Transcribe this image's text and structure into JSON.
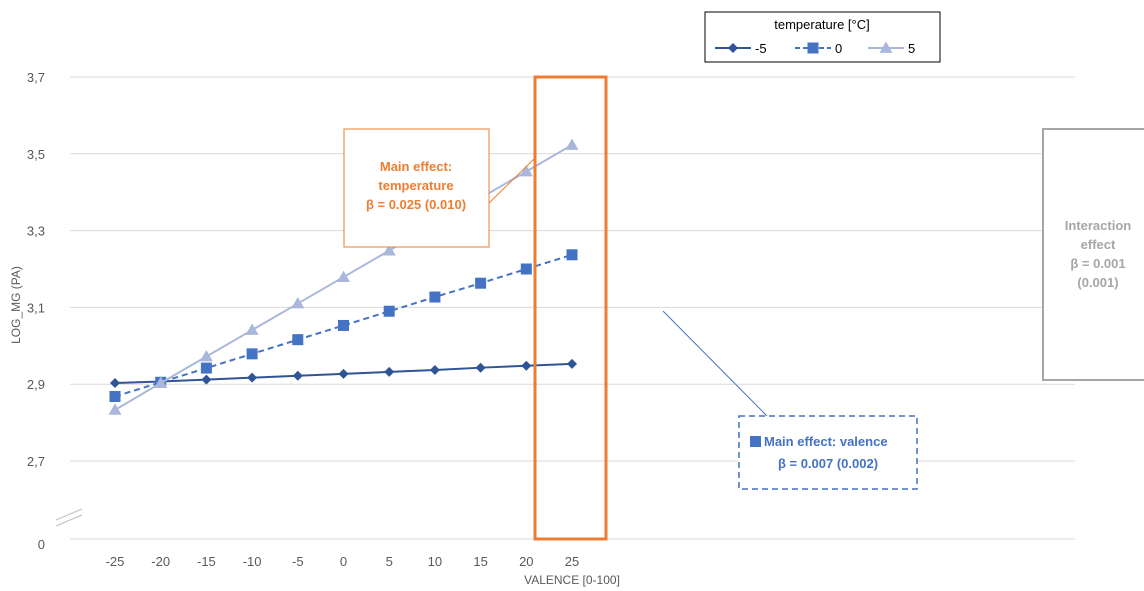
{
  "chart_data": {
    "type": "line",
    "xlabel": "VALENCE [0-100]",
    "ylabel": "LOG_MG (PA)",
    "x": [
      -25,
      -20,
      -15,
      -10,
      -5,
      0,
      5,
      10,
      15,
      20,
      25
    ],
    "x_tick_labels": [
      "-25",
      "-20",
      "-15",
      "-10",
      "-5",
      "0",
      "5",
      "10",
      "15",
      "20",
      "25"
    ],
    "y_tick_labels": [
      "0",
      "2,7",
      "2,9",
      "3,1",
      "3,3",
      "3,5",
      "3,7"
    ],
    "y_ticks": [
      2.7,
      2.9,
      3.1,
      3.3,
      3.5,
      3.7
    ],
    "ylim": [
      2.5,
      3.7
    ],
    "y_axis_break": true,
    "grid": "horizontal",
    "legend": {
      "title": "temperature [°C]",
      "placement": "top-right"
    },
    "series": [
      {
        "name": "-5",
        "color": "#2F5597",
        "marker": "diamond",
        "dash": "solid",
        "values": [
          2.903,
          2.907,
          2.912,
          2.917,
          2.922,
          2.927,
          2.932,
          2.937,
          2.943,
          2.948,
          2.953
        ]
      },
      {
        "name": "0",
        "color": "#4472C4",
        "marker": "square",
        "dash": "dashed",
        "values": [
          2.868,
          2.905,
          2.942,
          2.979,
          3.016,
          3.053,
          3.09,
          3.127,
          3.163,
          3.2,
          3.237
        ]
      },
      {
        "name": "5",
        "color": "#A9B7DC",
        "marker": "triangle",
        "dash": "solid",
        "values": [
          2.833,
          2.903,
          2.972,
          3.041,
          3.11,
          3.179,
          3.248,
          3.317,
          3.385,
          3.454,
          3.523
        ]
      }
    ],
    "annotations": {
      "temperature": {
        "lines": [
          "Main effect:",
          "temperature",
          "β = 0.025 (0.010)"
        ],
        "color": "#ED7D31"
      },
      "valence": {
        "lines": [
          "Main effect: valence",
          "β = 0.007 (0.002)"
        ],
        "color": "#4472C4"
      },
      "interaction": {
        "lines": [
          "Interaction",
          "effect",
          "β = 0.001",
          "(0.001)"
        ],
        "color": "#A6A6A6"
      }
    }
  }
}
